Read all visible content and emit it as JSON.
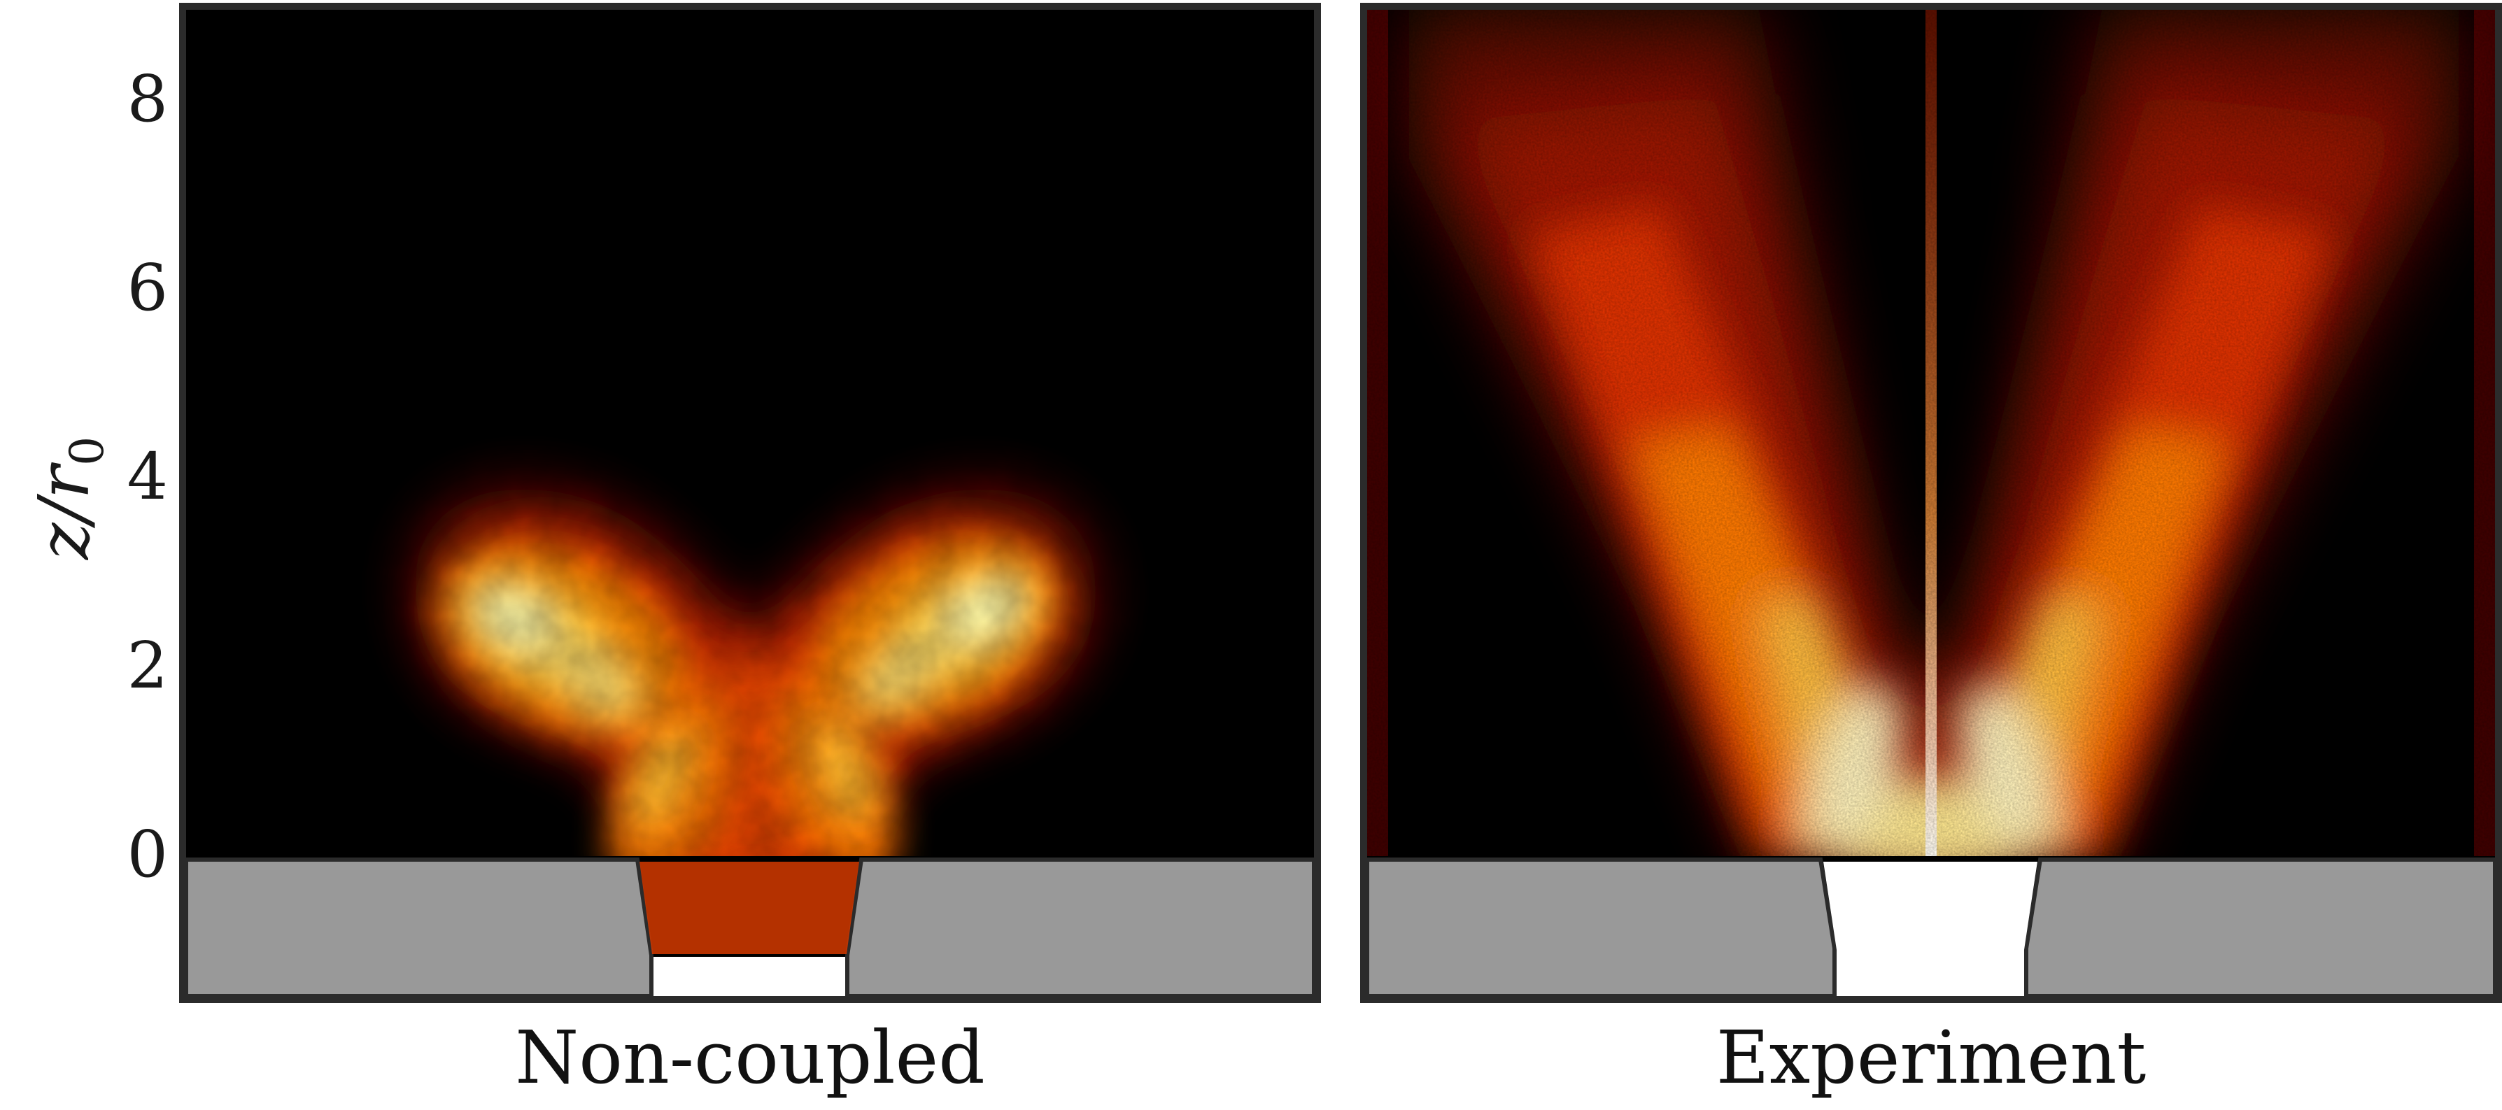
{
  "figure": {
    "y_axis": {
      "label_main": "z/r",
      "label_sub": "0",
      "ticks": [
        "8",
        "6",
        "4",
        "2",
        "0"
      ]
    },
    "panels": [
      {
        "title": "Non-coupled"
      },
      {
        "title": "Experiment"
      }
    ],
    "colors": {
      "background": "#000000",
      "frame": "#2b2b2b",
      "nozzle_body": "#999999",
      "nozzle_outlet": "#ffffff",
      "flame_hot": "#ffffb0",
      "flame_warm": "#ffb400",
      "flame_mid": "#e83200",
      "flame_cool": "#5a0000"
    },
    "colormap": "hot"
  }
}
